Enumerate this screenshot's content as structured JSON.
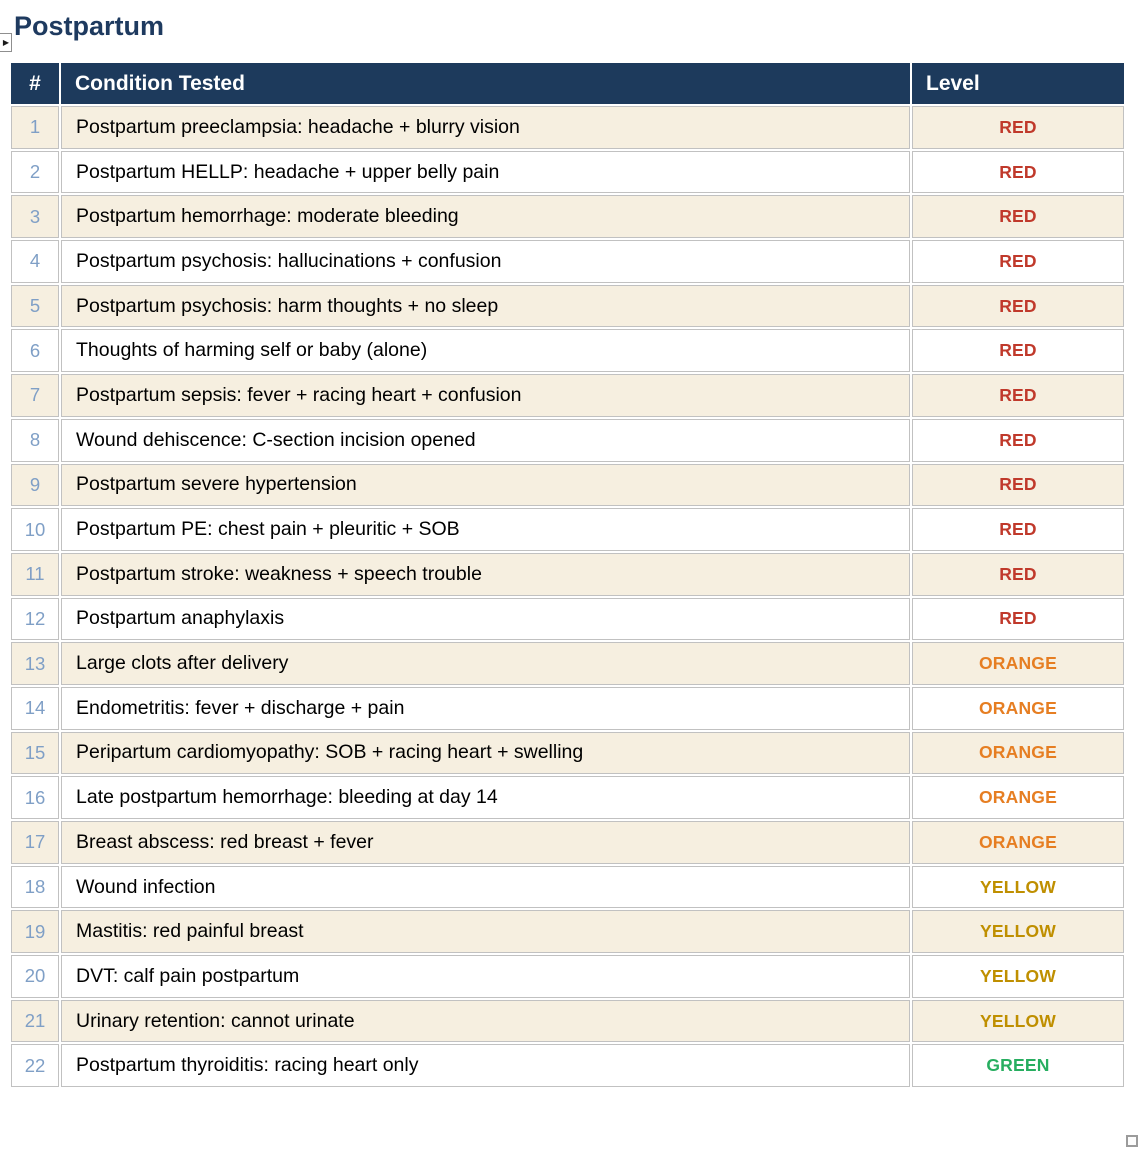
{
  "page": {
    "title": "Postpartum",
    "expand_button_glyph": "▶"
  },
  "table": {
    "columns": [
      {
        "key": "num",
        "label": "#"
      },
      {
        "key": "condition",
        "label": "Condition Tested"
      },
      {
        "key": "level",
        "label": "Level"
      }
    ],
    "rows": [
      {
        "num": "1",
        "condition": "Postpartum preeclampsia: headache + blurry vision",
        "level": "RED"
      },
      {
        "num": "2",
        "condition": "Postpartum HELLP: headache + upper belly pain",
        "level": "RED"
      },
      {
        "num": "3",
        "condition": "Postpartum hemorrhage: moderate bleeding",
        "level": "RED"
      },
      {
        "num": "4",
        "condition": "Postpartum psychosis: hallucinations + confusion",
        "level": "RED"
      },
      {
        "num": "5",
        "condition": "Postpartum psychosis: harm thoughts + no sleep",
        "level": "RED"
      },
      {
        "num": "6",
        "condition": "Thoughts of harming self or baby (alone)",
        "level": "RED"
      },
      {
        "num": "7",
        "condition": "Postpartum sepsis: fever + racing heart + confusion",
        "level": "RED"
      },
      {
        "num": "8",
        "condition": "Wound dehiscence: C-section incision opened",
        "level": "RED"
      },
      {
        "num": "9",
        "condition": "Postpartum severe hypertension",
        "level": "RED"
      },
      {
        "num": "10",
        "condition": "Postpartum PE: chest pain + pleuritic + SOB",
        "level": "RED"
      },
      {
        "num": "11",
        "condition": "Postpartum stroke: weakness + speech trouble",
        "level": "RED"
      },
      {
        "num": "12",
        "condition": "Postpartum anaphylaxis",
        "level": "RED"
      },
      {
        "num": "13",
        "condition": "Large clots after delivery",
        "level": "ORANGE"
      },
      {
        "num": "14",
        "condition": "Endometritis: fever + discharge + pain",
        "level": "ORANGE"
      },
      {
        "num": "15",
        "condition": "Peripartum cardiomyopathy: SOB + racing heart + swelling",
        "level": "ORANGE"
      },
      {
        "num": "16",
        "condition": "Late postpartum hemorrhage: bleeding at day 14",
        "level": "ORANGE"
      },
      {
        "num": "17",
        "condition": "Breast abscess: red breast + fever",
        "level": "ORANGE"
      },
      {
        "num": "18",
        "condition": "Wound infection",
        "level": "YELLOW"
      },
      {
        "num": "19",
        "condition": "Mastitis: red painful breast",
        "level": "YELLOW"
      },
      {
        "num": "20",
        "condition": "DVT: calf pain postpartum",
        "level": "YELLOW"
      },
      {
        "num": "21",
        "condition": "Urinary retention: cannot urinate",
        "level": "YELLOW"
      },
      {
        "num": "22",
        "condition": "Postpartum thyroiditis: racing heart only",
        "level": "GREEN"
      }
    ]
  },
  "level_colors": {
    "RED": "#c0392b",
    "ORANGE": "#e67e22",
    "YELLOW": "#bf8f00",
    "GREEN": "#27ae60"
  },
  "theme": {
    "title_color": "#1e3a5f",
    "header_bg": "#1d3a5c",
    "header_text": "#ffffff",
    "row_bg": "#ffffff",
    "row_alt_bg": "#f6efe0",
    "number_color": "#7f9fc6",
    "border_color": "#c1c1c1"
  }
}
